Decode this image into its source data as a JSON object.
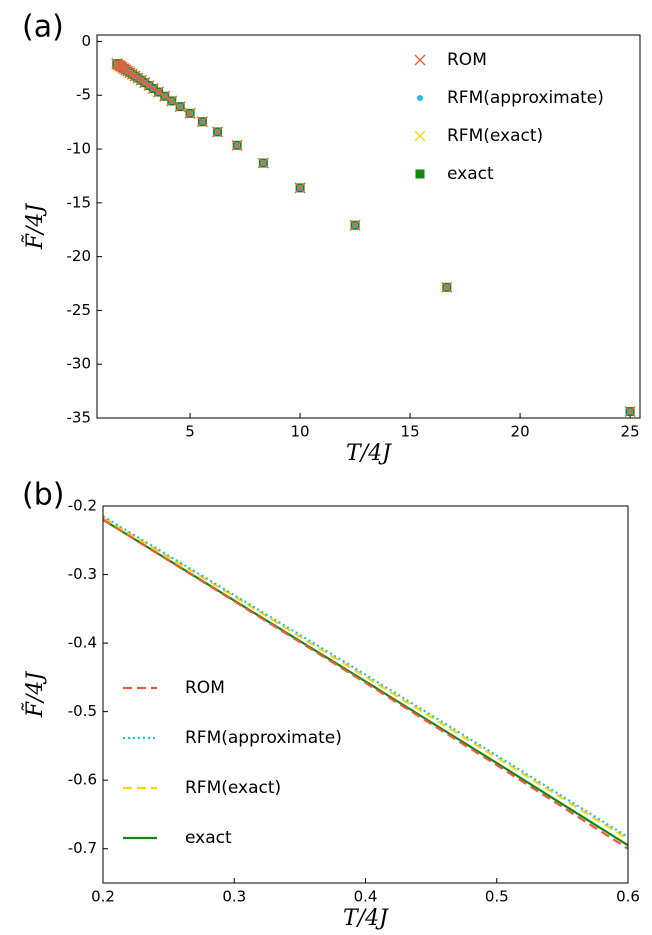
{
  "chart_data": [
    {
      "type": "scatter",
      "panel": "(a)",
      "x_label": "T/4J",
      "y_label": "F̃/4J",
      "x": [
        25,
        16.67,
        12.5,
        10,
        8.33,
        7.14,
        6.25,
        5.56,
        5,
        4.55,
        4.17,
        3.85,
        3.57,
        3.33,
        3.13,
        2.94,
        2.78,
        2.63,
        2.5,
        2.38,
        2.27,
        2.17,
        2.08,
        2,
        1.92,
        1.85,
        1.79,
        1.72,
        1.67
      ],
      "series": [
        {
          "name": "ROM",
          "color": "#ee5a3c",
          "marker": "x",
          "values": [
            -34.4,
            -22.85,
            -17.08,
            -13.61,
            -11.3,
            -9.65,
            -8.41,
            -7.46,
            -6.68,
            -6.06,
            -5.53,
            -5.09,
            -4.7,
            -4.37,
            -4.09,
            -3.83,
            -3.6,
            -3.4,
            -3.22,
            -3.05,
            -2.9,
            -2.76,
            -2.63,
            -2.52,
            -2.41,
            -2.31,
            -2.23,
            -2.13,
            -2.06
          ]
        },
        {
          "name": "RFM(approximate)",
          "color": "#1ec0e8",
          "marker": "dot",
          "values": [
            -34.4,
            -22.85,
            -17.08,
            -13.61,
            -11.3,
            -9.65,
            -8.41,
            -7.46,
            -6.68,
            -6.06,
            -5.53,
            -5.09,
            -4.7,
            -4.37,
            -4.09,
            -3.83,
            -3.6,
            -3.4,
            -3.22,
            -3.05,
            -2.9,
            -2.76,
            -2.63,
            -2.52,
            -2.41,
            -2.31,
            -2.23,
            -2.13,
            -2.06
          ]
        },
        {
          "name": "RFM(exact)",
          "color": "#ffd700",
          "marker": "x",
          "values": [
            -34.4,
            -22.85,
            -17.08,
            -13.61,
            -11.3,
            -9.65,
            -8.41,
            -7.46,
            -6.68,
            -6.06,
            -5.53,
            -5.09,
            -4.7,
            -4.37,
            -4.09,
            -3.83,
            -3.6,
            -3.4,
            -3.22,
            -3.05,
            -2.9,
            -2.76,
            -2.63,
            -2.52,
            -2.41,
            -2.31,
            -2.23,
            -2.13,
            -2.06
          ]
        },
        {
          "name": "exact",
          "color": "#118811",
          "marker": "square",
          "values": [
            -34.4,
            -22.85,
            -17.08,
            -13.61,
            -11.3,
            -9.65,
            -8.41,
            -7.46,
            -6.68,
            -6.06,
            -5.53,
            -5.09,
            -4.7,
            -4.37,
            -4.09,
            -3.83,
            -3.6,
            -3.4,
            -3.22,
            -3.05,
            -2.9,
            -2.76,
            -2.63,
            -2.52,
            -2.41,
            -2.31,
            -2.23,
            -2.13,
            -2.06
          ]
        }
      ],
      "xlim": [
        0.77,
        25.45
      ],
      "ylim": [
        -35,
        0.6
      ],
      "xticks": [
        5,
        10,
        15,
        20,
        25
      ],
      "yticks": [
        -35,
        -30,
        -25,
        -20,
        -15,
        -10,
        -5,
        0
      ],
      "legend": "upper right"
    },
    {
      "type": "line",
      "panel": "(b)",
      "x_label": "T/4J",
      "y_label": "F̃/4J",
      "x": [
        0.2,
        0.3,
        0.4,
        0.5,
        0.6
      ],
      "series": [
        {
          "name": "ROM",
          "color": "#ee5a3c",
          "style": "dash",
          "values": [
            -0.22,
            -0.339,
            -0.458,
            -0.578,
            -0.7
          ]
        },
        {
          "name": "RFM(approximate)",
          "color": "#1ec0e8",
          "style": "dot",
          "values": [
            -0.215,
            -0.33,
            -0.446,
            -0.564,
            -0.683
          ]
        },
        {
          "name": "RFM(exact)",
          "color": "#ffd700",
          "style": "dash",
          "values": [
            -0.217,
            -0.332,
            -0.449,
            -0.567,
            -0.686
          ]
        },
        {
          "name": "exact",
          "color": "#118811",
          "style": "solid",
          "values": [
            -0.22,
            -0.338,
            -0.456,
            -0.575,
            -0.695
          ]
        }
      ],
      "xlim": [
        0.2,
        0.6
      ],
      "ylim": [
        -0.75,
        -0.2
      ],
      "xticks": [
        0.2,
        0.3,
        0.4,
        0.5,
        0.6
      ],
      "yticks": [
        -0.7,
        -0.6,
        -0.5,
        -0.4,
        -0.3,
        -0.2
      ],
      "legend": "lower left"
    }
  ]
}
